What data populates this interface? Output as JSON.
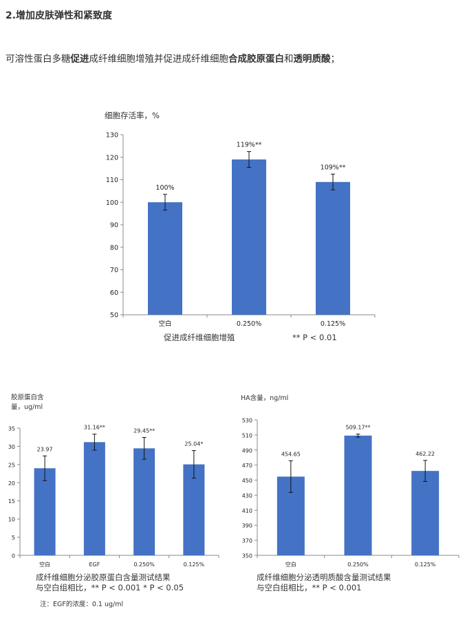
{
  "heading": "2.增加皮肤弹性和紧致度",
  "intro": {
    "p1": "可溶性蛋白多糖",
    "b1": "促进",
    "p2": "成纤维细胞增殖并促进成纤维细胞",
    "b2": "合成胶原蛋白",
    "p3": "和",
    "b3": "透明质酸",
    "p4": "；"
  },
  "chart_data": [
    {
      "type": "bar",
      "ylabel": "细胞存活率，%",
      "categories": [
        "空白",
        "0.250%",
        "0.125%"
      ],
      "values": [
        100,
        119,
        109
      ],
      "errors": [
        3.5,
        3.5,
        3.5
      ],
      "data_labels": [
        "100%",
        "119%**",
        "109%**"
      ],
      "ylim": [
        50,
        130
      ],
      "yticks": [
        50,
        60,
        70,
        80,
        90,
        100,
        110,
        120,
        130
      ],
      "caption": "促进成纤维细胞增殖",
      "note": "** P < 0.01",
      "color": "#4472C4"
    },
    {
      "type": "bar",
      "ylabel_lines": [
        "胶原蛋白含",
        "量，ug/ml"
      ],
      "categories": [
        "空白",
        "EGF",
        "0.250%",
        "0.125%"
      ],
      "values": [
        23.97,
        31.16,
        29.45,
        25.04
      ],
      "errors": [
        3.4,
        2.2,
        3.0,
        3.8
      ],
      "data_labels": [
        "23.97",
        "31.16**",
        "29.45**",
        "25.04*"
      ],
      "ylim": [
        0,
        35
      ],
      "yticks": [
        0,
        5,
        10,
        15,
        20,
        25,
        30,
        35
      ],
      "caption_lines": [
        "成纤维细胞分泌胶原蛋白含量测试结果",
        "与空白组相比，** P < 0.001   * P < 0.05"
      ],
      "footnote": "注：EGF的浓度：0.1 ug/ml",
      "color": "#4472C4"
    },
    {
      "type": "bar",
      "ylabel": "HA含量，ng/ml",
      "categories": [
        "空白",
        "0.250%",
        "0.125%"
      ],
      "values": [
        454.65,
        509.17,
        462.22
      ],
      "errors": [
        21,
        2,
        14
      ],
      "data_labels": [
        "454.65",
        "509.17**",
        "462.22"
      ],
      "ylim": [
        350,
        530
      ],
      "yticks": [
        350,
        370,
        390,
        410,
        430,
        450,
        470,
        490,
        510,
        530
      ],
      "caption_lines": [
        "成纤维细胞分泌透明质酸含量测试结果",
        "与空白组相比，** P < 0.001"
      ],
      "color": "#4472C4"
    }
  ]
}
